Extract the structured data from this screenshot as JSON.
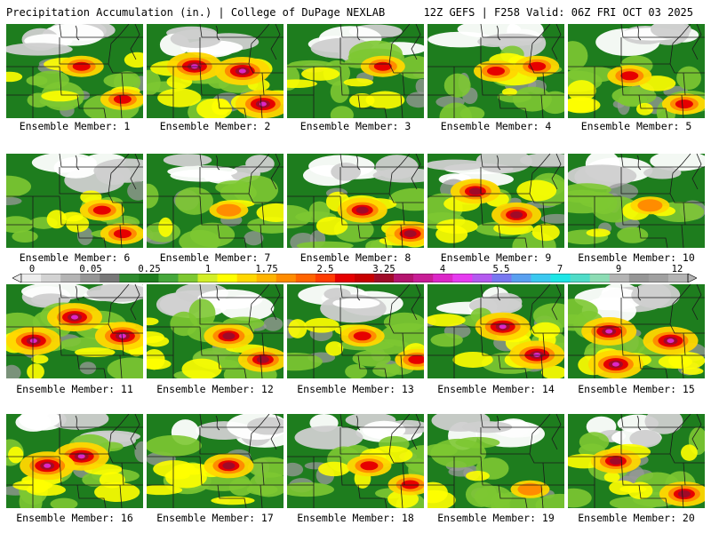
{
  "header": {
    "title_left": "Precipitation Accumulation (in.) | College of DuPage NEXLAB",
    "title_right": "12Z GEFS | F258 Valid: 06Z FRI OCT 03 2025"
  },
  "legend": {
    "labels": [
      "0",
      "0.05",
      "0.25",
      "1",
      "1.75",
      "2.5",
      "3.25",
      "4",
      "5.5",
      "7",
      "9",
      "12"
    ],
    "colors": [
      "#ececec",
      "#d2d2d2",
      "#b4b4b4",
      "#969696",
      "#787878",
      "#2e8b2e",
      "#1e7d1e",
      "#46a83c",
      "#7dc832",
      "#d2ee28",
      "#ffff00",
      "#ffd700",
      "#ffb400",
      "#ff8c00",
      "#ff6400",
      "#ff3c00",
      "#e60000",
      "#c80000",
      "#a00a28",
      "#b4146e",
      "#c81e96",
      "#dc28c8",
      "#e63cf0",
      "#b45af0",
      "#7878f0",
      "#5aa0f0",
      "#3cc8f0",
      "#1ee6e6",
      "#50dcc8",
      "#8cdcb4",
      "#b4b4b4",
      "#969696",
      "#a0a0a0",
      "#b4b4b4"
    ]
  },
  "members": [
    {
      "label": "Ensemble Member: 1",
      "intensity": 1,
      "hotspots": [
        [
          0.55,
          0.45
        ],
        [
          0.85,
          0.8
        ]
      ]
    },
    {
      "label": "Ensemble Member: 2",
      "intensity": 3,
      "hotspots": [
        [
          0.35,
          0.45
        ],
        [
          0.7,
          0.5
        ],
        [
          0.85,
          0.85
        ]
      ]
    },
    {
      "label": "Ensemble Member: 3",
      "intensity": 1,
      "hotspots": [
        [
          0.7,
          0.45
        ]
      ]
    },
    {
      "label": "Ensemble Member: 4",
      "intensity": 1,
      "hotspots": [
        [
          0.5,
          0.5
        ],
        [
          0.8,
          0.45
        ]
      ]
    },
    {
      "label": "Ensemble Member: 5",
      "intensity": 1,
      "hotspots": [
        [
          0.45,
          0.55
        ],
        [
          0.85,
          0.85
        ]
      ]
    },
    {
      "label": "Ensemble Member: 6",
      "intensity": 1,
      "hotspots": [
        [
          0.7,
          0.6
        ],
        [
          0.85,
          0.85
        ]
      ]
    },
    {
      "label": "Ensemble Member: 7",
      "intensity": 0,
      "hotspots": [
        [
          0.6,
          0.6
        ]
      ]
    },
    {
      "label": "Ensemble Member: 8",
      "intensity": 2,
      "hotspots": [
        [
          0.55,
          0.6
        ],
        [
          0.9,
          0.85
        ]
      ]
    },
    {
      "label": "Ensemble Member: 9",
      "intensity": 2,
      "hotspots": [
        [
          0.35,
          0.4
        ],
        [
          0.65,
          0.65
        ]
      ]
    },
    {
      "label": "Ensemble Member: 10",
      "intensity": 0,
      "hotspots": [
        [
          0.6,
          0.55
        ]
      ]
    },
    {
      "label": "Ensemble Member: 11",
      "intensity": 3,
      "hotspots": [
        [
          0.2,
          0.6
        ],
        [
          0.5,
          0.35
        ],
        [
          0.85,
          0.55
        ]
      ]
    },
    {
      "label": "Ensemble Member: 12",
      "intensity": 2,
      "hotspots": [
        [
          0.6,
          0.55
        ],
        [
          0.85,
          0.8
        ]
      ]
    },
    {
      "label": "Ensemble Member: 13",
      "intensity": 1,
      "hotspots": [
        [
          0.55,
          0.55
        ],
        [
          0.95,
          0.8
        ]
      ]
    },
    {
      "label": "Ensemble Member: 14",
      "intensity": 3,
      "hotspots": [
        [
          0.55,
          0.45
        ],
        [
          0.8,
          0.75
        ]
      ]
    },
    {
      "label": "Ensemble Member: 15",
      "intensity": 3,
      "hotspots": [
        [
          0.3,
          0.5
        ],
        [
          0.35,
          0.85
        ],
        [
          0.75,
          0.6
        ]
      ]
    },
    {
      "label": "Ensemble Member: 16",
      "intensity": 3,
      "hotspots": [
        [
          0.55,
          0.45
        ],
        [
          0.3,
          0.55
        ]
      ]
    },
    {
      "label": "Ensemble Member: 17",
      "intensity": 2,
      "hotspots": [
        [
          0.6,
          0.55
        ]
      ]
    },
    {
      "label": "Ensemble Member: 18",
      "intensity": 1,
      "hotspots": [
        [
          0.6,
          0.55
        ],
        [
          0.9,
          0.75
        ]
      ]
    },
    {
      "label": "Ensemble Member: 19",
      "intensity": 0,
      "hotspots": [
        [
          0.75,
          0.8
        ]
      ]
    },
    {
      "label": "Ensemble Member: 20",
      "intensity": 2,
      "hotspots": [
        [
          0.35,
          0.5
        ],
        [
          0.85,
          0.85
        ]
      ]
    }
  ]
}
